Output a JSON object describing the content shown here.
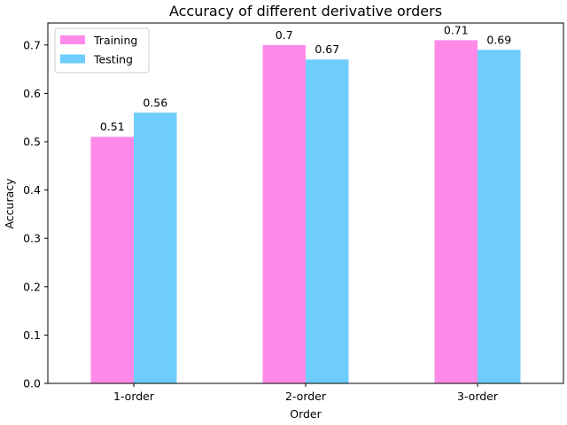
{
  "chart_data": {
    "type": "bar",
    "title": "Accuracy of different derivative orders",
    "xlabel": "Order",
    "ylabel": "Accuracy",
    "categories": [
      "1-order",
      "2-order",
      "3-order"
    ],
    "series": [
      {
        "name": "Training",
        "values": [
          0.51,
          0.7,
          0.71
        ],
        "labels": [
          "0.51",
          "0.7",
          "0.71"
        ],
        "color": "#ff8ae9"
      },
      {
        "name": "Testing",
        "values": [
          0.56,
          0.67,
          0.69
        ],
        "labels": [
          "0.56",
          "0.67",
          "0.69"
        ],
        "color": "#6fcdfd"
      }
    ],
    "ylim": [
      0,
      0.7455
    ],
    "yticks": [
      0.0,
      0.1,
      0.2,
      0.3,
      0.4,
      0.5,
      0.6,
      0.7
    ],
    "ytick_labels": [
      "0.0",
      "0.1",
      "0.2",
      "0.3",
      "0.4",
      "0.5",
      "0.6",
      "0.7"
    ],
    "grid": false,
    "legend": "top-left"
  }
}
